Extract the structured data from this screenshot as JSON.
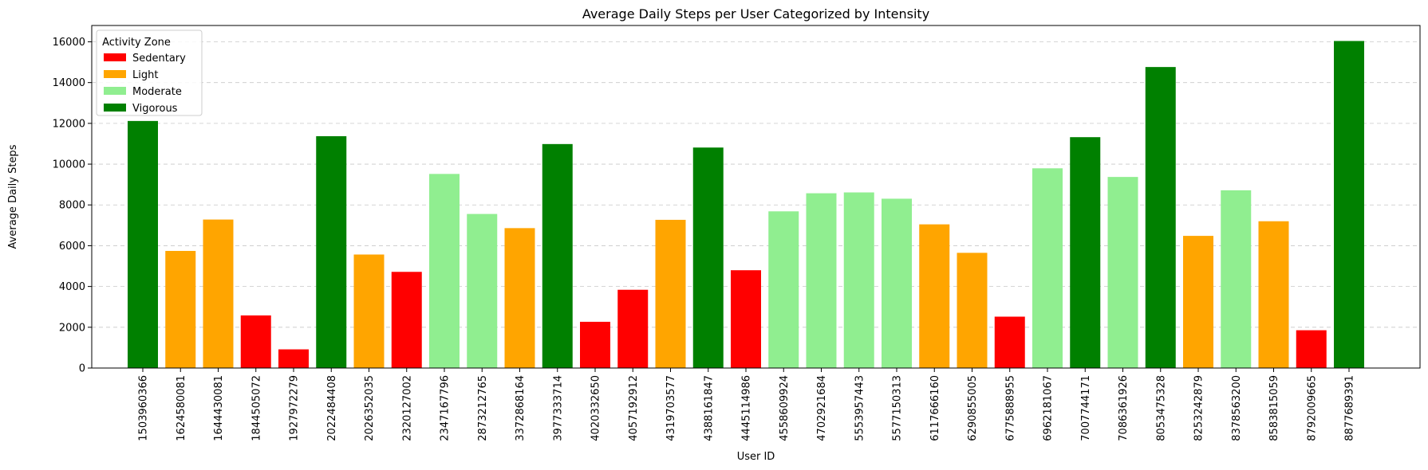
{
  "chart_data": {
    "type": "bar",
    "title": "Average Daily Steps per User Categorized by Intensity",
    "xlabel": "User ID",
    "ylabel": "Average Daily Steps",
    "ylim": [
      0,
      16800
    ],
    "yticks": [
      0,
      2000,
      4000,
      6000,
      8000,
      10000,
      12000,
      14000,
      16000
    ],
    "grid": "y-dashed",
    "legend": {
      "title": "Activity Zone",
      "placement": "top-left",
      "entries": [
        {
          "label": "Sedentary",
          "color": "#ff0000"
        },
        {
          "label": "Light",
          "color": "#ffa500"
        },
        {
          "label": "Moderate",
          "color": "#90ee90"
        },
        {
          "label": "Vigorous",
          "color": "#008000"
        }
      ]
    },
    "categories": [
      "1503960366",
      "1624580081",
      "1644430081",
      "1844505072",
      "1927972279",
      "2022484408",
      "2026352035",
      "2320127002",
      "2347167796",
      "2873212765",
      "3372868164",
      "3977333714",
      "4020332650",
      "4057192912",
      "4319703577",
      "4388161847",
      "4445114986",
      "4558609924",
      "4702921684",
      "5553957443",
      "5577150313",
      "6117666160",
      "6290855005",
      "6775888955",
      "6962181067",
      "7007744171",
      "7086361926",
      "8053475328",
      "8253242879",
      "8378563200",
      "8583815059",
      "8792009665",
      "8877689391"
    ],
    "values": [
      12117,
      5744,
      7283,
      2580,
      916,
      11371,
      5567,
      4717,
      9520,
      7556,
      6862,
      10985,
      2268,
      3839,
      7269,
      10814,
      4797,
      7685,
      8572,
      8613,
      8305,
      7047,
      5650,
      2520,
      9795,
      11323,
      9372,
      14763,
      6482,
      8718,
      7199,
      1854,
      16040
    ],
    "zones": [
      "Vigorous",
      "Light",
      "Light",
      "Sedentary",
      "Sedentary",
      "Vigorous",
      "Light",
      "Sedentary",
      "Moderate",
      "Moderate",
      "Light",
      "Vigorous",
      "Sedentary",
      "Sedentary",
      "Light",
      "Vigorous",
      "Sedentary",
      "Moderate",
      "Moderate",
      "Moderate",
      "Moderate",
      "Light",
      "Light",
      "Sedentary",
      "Moderate",
      "Vigorous",
      "Moderate",
      "Vigorous",
      "Light",
      "Moderate",
      "Light",
      "Sedentary",
      "Vigorous"
    ]
  }
}
